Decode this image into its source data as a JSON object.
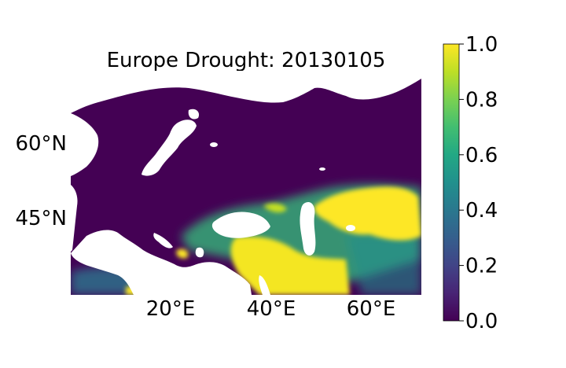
{
  "map": {
    "title": "Europe Drought: 20130105",
    "lon_ticks": [
      "20°E",
      "40°E",
      "60°E"
    ],
    "lat_ticks": [
      "60°N",
      "45°N"
    ],
    "extent": {
      "lon": [
        0,
        70
      ],
      "lat": [
        33,
        77
      ]
    },
    "colors": {
      "land_low": "#440154",
      "water": "#ffffff"
    }
  },
  "colorbar": {
    "colormap": "viridis",
    "range": [
      0.0,
      1.0
    ],
    "ticks": [
      "0.0",
      "0.2",
      "0.4",
      "0.6",
      "0.8",
      "1.0"
    ],
    "stops": [
      "#440154",
      "#482475",
      "#414487",
      "#355f8d",
      "#2a788e",
      "#21908d",
      "#22a884",
      "#42be71",
      "#7ad151",
      "#bddf26",
      "#fde725"
    ]
  }
}
